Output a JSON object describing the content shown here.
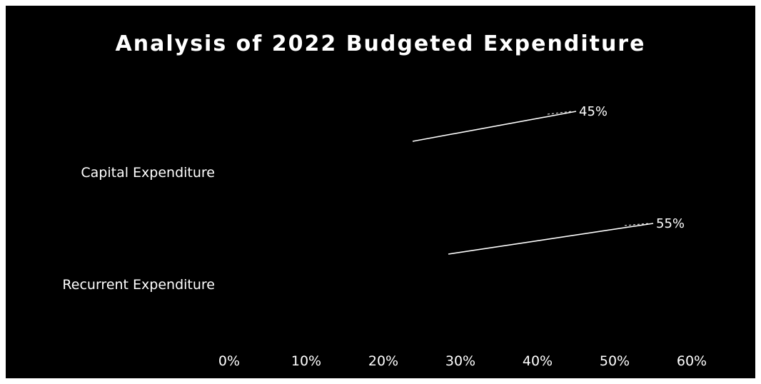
{
  "chart_data": {
    "type": "bar",
    "orientation": "horizontal",
    "title": "Analysis of 2022 Budgeted Expenditure",
    "categories": [
      "Capital Expenditure",
      "Recurrent Expenditure"
    ],
    "values": [
      45,
      55
    ],
    "data_labels": [
      "45%",
      "55%"
    ],
    "xlim": [
      0,
      60
    ],
    "xticks": [
      "0%",
      "10%",
      "20%",
      "30%",
      "40%",
      "50%",
      "60%"
    ],
    "grid": false,
    "legend": "none",
    "colors": {
      "background": "#000000",
      "text": "#ffffff",
      "leader_line": "#ffffff"
    }
  }
}
